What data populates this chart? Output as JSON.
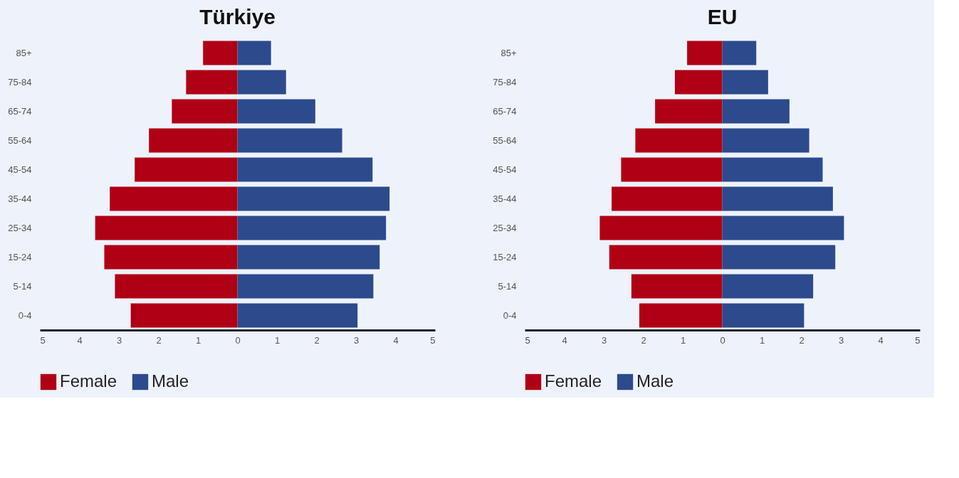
{
  "chart_data": [
    {
      "type": "bar",
      "orientation": "horizontal",
      "stacked": true,
      "title": "Türkiye",
      "categories": [
        "85+",
        "75-84",
        "65-74",
        "55-64",
        "45-54",
        "35-44",
        "25-34",
        "15-24",
        "5-14",
        "0-4"
      ],
      "series": [
        {
          "name": "Female",
          "color": "#b00015",
          "values": [
            -0.87,
            -1.3,
            -1.66,
            -2.24,
            -2.6,
            -3.23,
            -3.6,
            -3.37,
            -3.1,
            -2.7
          ]
        },
        {
          "name": "Male",
          "color": "#2c4a8c",
          "values": [
            0.85,
            1.23,
            1.97,
            2.65,
            3.42,
            3.85,
            3.76,
            3.6,
            3.44,
            3.04
          ]
        }
      ],
      "xlim": [
        -5,
        5
      ],
      "xticks": [
        {
          "value": -5,
          "label": "5"
        },
        {
          "value": -4,
          "label": "4"
        },
        {
          "value": -3,
          "label": "3"
        },
        {
          "value": -2,
          "label": "2"
        },
        {
          "value": -1,
          "label": "1"
        },
        0,
        1,
        2,
        3,
        4,
        5
      ],
      "grid": false,
      "legend": "bottom"
    },
    {
      "type": "bar",
      "orientation": "horizontal",
      "stacked": true,
      "title": "EU",
      "categories": [
        "85+",
        "75-84",
        "65-74",
        "55-64",
        "45-54",
        "35-44",
        "25-34",
        "15-24",
        "5-14",
        "0-4"
      ],
      "series": [
        {
          "name": "Female",
          "color": "#b00015",
          "values": [
            -0.89,
            -1.2,
            -1.7,
            -2.2,
            -2.56,
            -2.8,
            -3.1,
            -2.86,
            -2.3,
            -2.1
          ]
        },
        {
          "name": "Male",
          "color": "#2c4a8c",
          "values": [
            0.86,
            1.16,
            1.7,
            2.2,
            2.54,
            2.8,
            3.08,
            2.86,
            2.3,
            2.07
          ]
        }
      ],
      "xlim": [
        -5,
        5
      ],
      "xticks": [
        {
          "value": -5,
          "label": "5"
        },
        {
          "value": -4,
          "label": "4"
        },
        {
          "value": -3,
          "label": "3"
        },
        {
          "value": -2,
          "label": "2"
        },
        {
          "value": -1,
          "label": "1"
        },
        0,
        1,
        2,
        3,
        4,
        5
      ],
      "grid": false,
      "legend": "bottom"
    }
  ]
}
